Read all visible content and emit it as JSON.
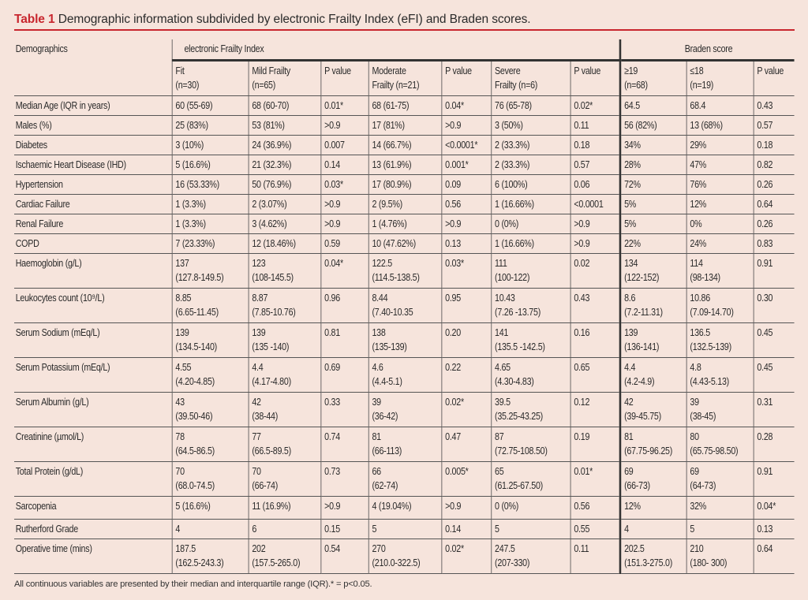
{
  "title": {
    "label": "Table 1",
    "text": "Demographic information subdivided by electronic Frailty Index (eFI) and Braden scores."
  },
  "header": {
    "demographics": "Demographics",
    "efi_group": "electronic Frailty Index",
    "braden_group": "Braden score",
    "columns": [
      "Fit\n(n=30)",
      "Mild Frailty\n(n=65)",
      "P value",
      "Moderate\nFrailty (n=21)",
      "P value",
      "Severe\nFrailty (n=6)",
      "P value",
      "≥19\n(n=68)",
      "≤18\n(n=19)",
      "P value"
    ]
  },
  "rows": [
    {
      "label": "Median Age (IQR in years)",
      "cells": [
        "60 (55-69)",
        "68 (60-70)",
        "0.01*",
        "68 (61-75)",
        "0.04*",
        "76 (65-78)",
        "0.02*",
        "64.5",
        "68.4",
        "0.43"
      ]
    },
    {
      "label": "Males (%)",
      "cells": [
        "25 (83%)",
        "53 (81%)",
        ">0.9",
        "17 (81%)",
        ">0.9",
        "3 (50%)",
        "0.11",
        "56 (82%)",
        "13 (68%)",
        "0.57"
      ]
    },
    {
      "label": "Diabetes",
      "cells": [
        "3 (10%)",
        "24 (36.9%)",
        "0.007",
        "14 (66.7%)",
        "<0.0001*",
        "2 (33.3%)",
        "0.18",
        "34%",
        "29%",
        "0.18"
      ]
    },
    {
      "label": "Ischaemic Heart Disease (IHD)",
      "cells": [
        "5 (16.6%)",
        "21 (32.3%)",
        "0.14",
        "13 (61.9%)",
        "0.001*",
        "2 (33.3%)",
        "0.57",
        "28%",
        "47%",
        "0.82"
      ]
    },
    {
      "label": "Hypertension",
      "cells": [
        "16 (53.33%)",
        "50 (76.9%)",
        "0.03*",
        "17 (80.9%)",
        "0.09",
        "6 (100%)",
        "0.06",
        "72%",
        "76%",
        "0.26"
      ]
    },
    {
      "label": "Cardiac Failure",
      "cells": [
        "1 (3.3%)",
        "2 (3.07%)",
        ">0.9",
        "2 (9.5%)",
        "0.56",
        "1 (16.66%)",
        "<0.0001",
        "5%",
        "12%",
        "0.64"
      ]
    },
    {
      "label": "Renal Failure",
      "cells": [
        "1 (3.3%)",
        "3 (4.62%)",
        ">0.9",
        "1 (4.76%)",
        ">0.9",
        "0 (0%)",
        ">0.9",
        "5%",
        "0%",
        "0.26"
      ]
    },
    {
      "label": "COPD",
      "cells": [
        "7 (23.33%)",
        "12 (18.46%)",
        "0.59",
        "10 (47.62%)",
        "0.13",
        "1 (16.66%)",
        ">0.9",
        "22%",
        "24%",
        "0.83"
      ]
    },
    {
      "label": "Haemoglobin (g/L)",
      "cells": [
        "137\n(127.8-149.5)",
        "123\n(108-145.5)",
        "0.04*",
        "122.5\n(114.5-138.5)",
        "0.03*",
        "111\n(100-122)",
        "0.02",
        "134\n(122-152)",
        "114\n(98-134)",
        "0.91"
      ]
    },
    {
      "label": "Leukocytes count (10⁹/L)",
      "cells": [
        "8.85\n(6.65-11.45)",
        "8.87\n(7.85-10.76)",
        "0.96",
        "8.44\n(7.40-10.35",
        "0.95",
        "10.43\n(7.26 -13.75)",
        "0.43",
        "8.6\n(7.2-11.31)",
        "10.86\n(7.09-14.70)",
        "0.30"
      ]
    },
    {
      "label": "Serum Sodium (mEq/L)",
      "cells": [
        "139\n(134.5-140)",
        "139\n(135 -140)",
        "0.81",
        "138\n(135-139)",
        "0.20",
        "141\n(135.5 -142.5)",
        "0.16",
        "139\n(136-141)",
        "136.5\n(132.5-139)",
        "0.45"
      ]
    },
    {
      "label": "Serum Potassium (mEq/L)",
      "cells": [
        "4.55\n(4.20-4.85)",
        "4.4\n(4.17-4.80)",
        "0.69",
        "4.6\n(4.4-5.1)",
        "0.22",
        "4.65\n(4.30-4.83)",
        "0.65",
        "4.4\n(4.2-4.9)",
        "4.8\n(4.43-5.13)",
        "0.45"
      ]
    },
    {
      "label": "Serum Albumin (g/L)",
      "cells": [
        "43\n(39.50-46)",
        "42\n(38-44)",
        "0.33",
        "39\n(36-42)",
        "0.02*",
        "39.5\n(35.25-43.25)",
        "0.12",
        "42\n(39-45.75)",
        "39\n(38-45)",
        "0.31"
      ]
    },
    {
      "label": "Creatinine (µmol/L)",
      "cells": [
        "78\n(64.5-86.5)",
        "77\n(66.5-89.5)",
        "0.74",
        "81\n(66-113)",
        "0.47",
        "87\n(72.75-108.50)",
        "0.19",
        "81\n(67.75-96.25)",
        "80\n(65.75-98.50)",
        "0.28"
      ]
    },
    {
      "label": "Total Protein (g/dL)",
      "cells": [
        "70\n(68.0-74.5)",
        "70\n(66-74)",
        "0.73",
        "66\n(62-74)",
        "0.005*",
        "65\n(61.25-67.50)",
        "0.01*",
        "69\n(66-73)",
        "69\n(64-73)",
        "0.91"
      ]
    },
    {
      "label": "Sarcopenia",
      "cells": [
        "5 (16.6%)",
        "11 (16.9%)",
        ">0.9",
        "4 (19.04%)",
        ">0.9",
        "0 (0%)",
        "0.56",
        "12%",
        "32%",
        "0.04*"
      ]
    },
    {
      "label": "Rutherford Grade",
      "cells": [
        "4",
        "6",
        "0.15",
        "5",
        "0.14",
        "5",
        "0.55",
        "4",
        "5",
        "0.13"
      ]
    },
    {
      "label": "Operative time (mins)",
      "cells": [
        "187.5\n(162.5-243.3)",
        "202\n(157.5-265.0)",
        "0.54",
        "270\n(210.0-322.5)",
        "0.02*",
        "247.5\n(207-330)",
        "0.11",
        "202.5\n(151.3-275.0)",
        "210\n(180- 300)",
        "0.64"
      ]
    }
  ],
  "footnote": "All continuous variables are presented by their median and interquartile range (IQR).* = p<0.05.",
  "colors": {
    "accent": "#c8262e",
    "background": "#f6e4dc",
    "text": "#2b2b2b"
  }
}
